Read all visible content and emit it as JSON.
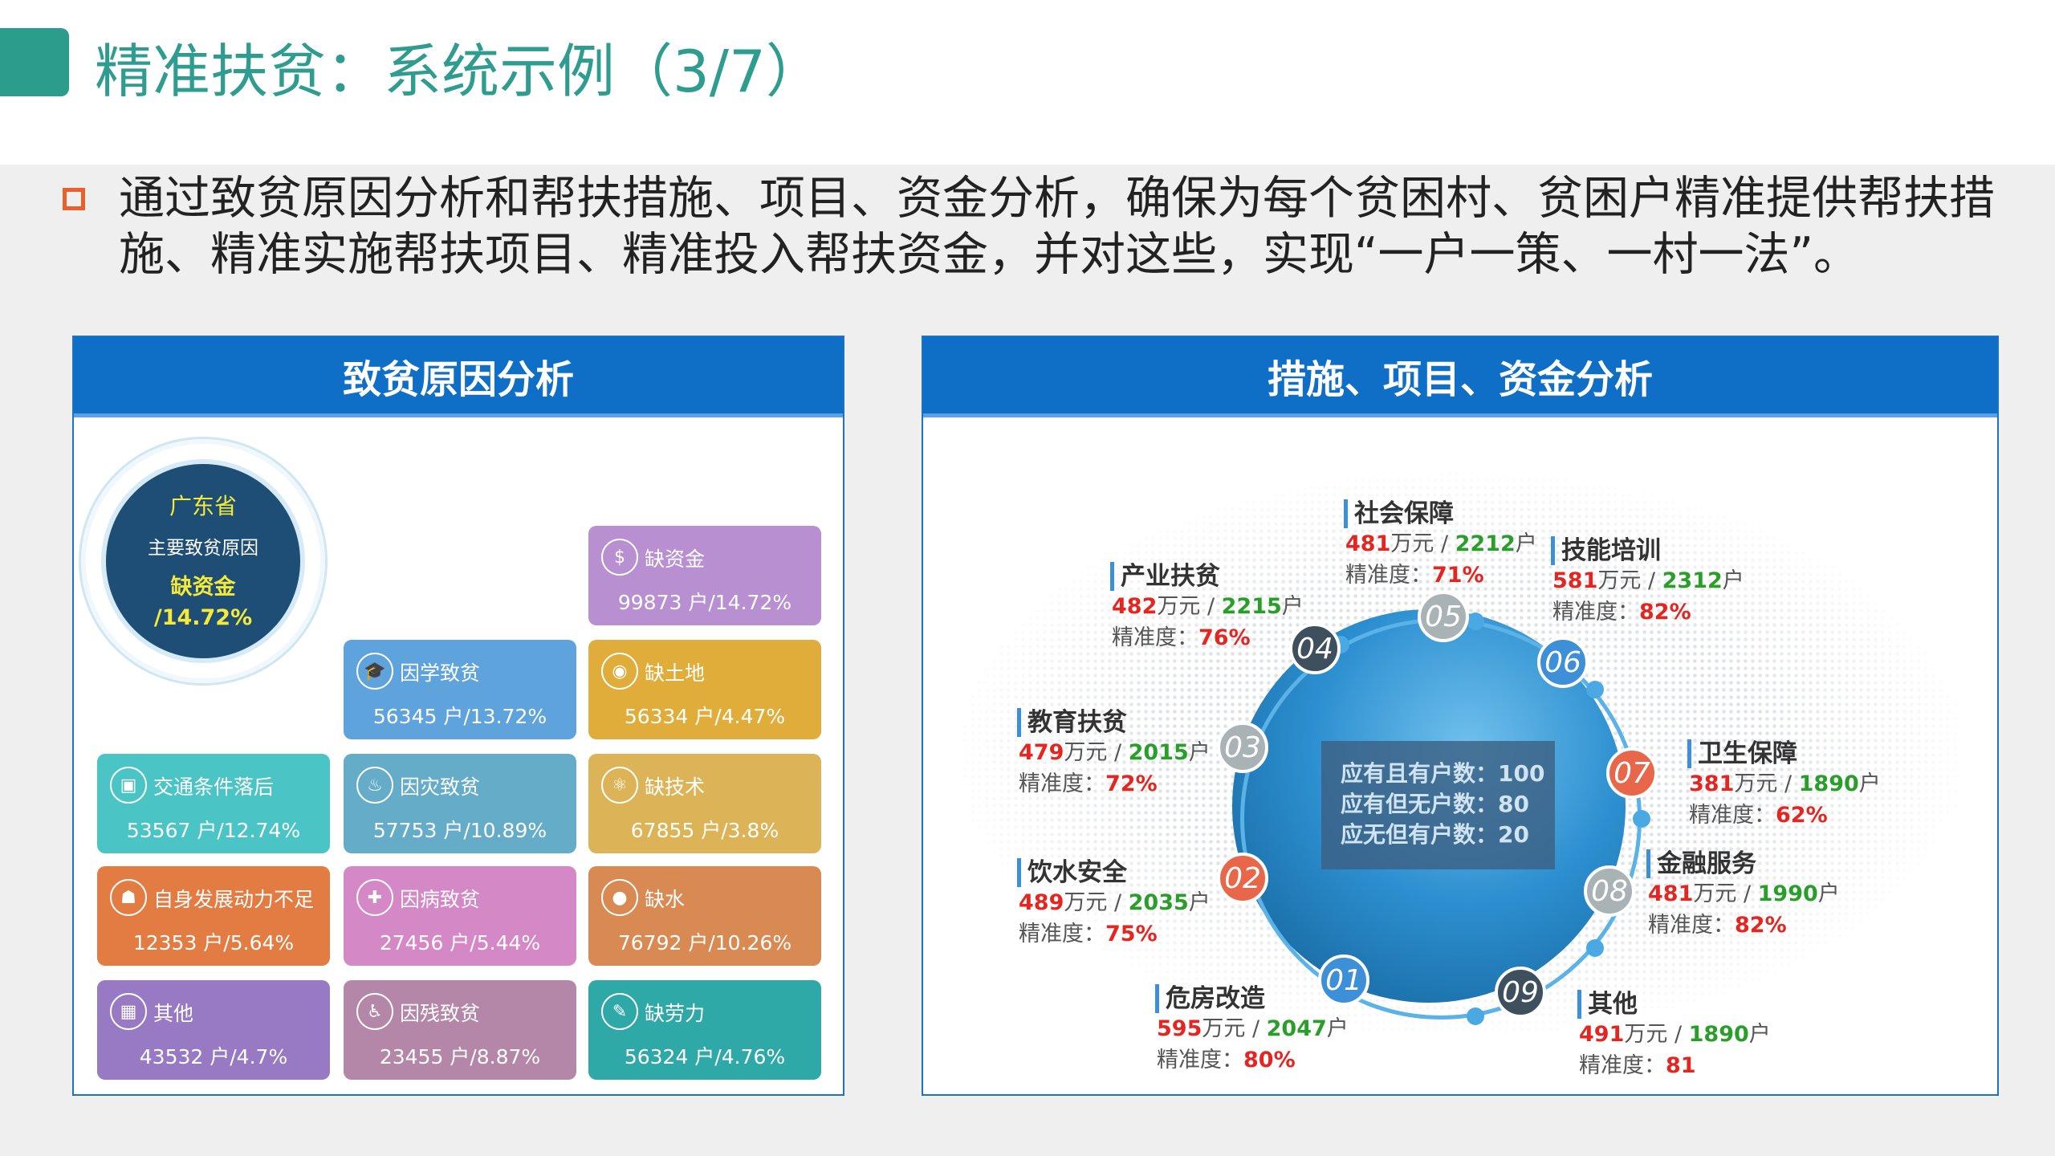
{
  "header": {
    "title": "精准扶贫：系统示例（3/7）",
    "accent": "#2c9c8c"
  },
  "intro": "通过致贫原因分析和帮扶措施、项目、资金分析，确保为每个贫困村、贫困户精准提供帮扶措施、精准实施帮扶项目、精准投入帮扶资金，并对这些，实现“一户一策、一村一法”。",
  "left_panel": {
    "title": "致贫原因分析",
    "summary": {
      "region": "广东省",
      "caption": "主要致贫原因",
      "cause": "缺资金",
      "percent": "/14.72%"
    },
    "tiles": [
      {
        "label": "缺资金",
        "value": "99873  户/14.72%",
        "icon": "coins-icon",
        "color": "#b88fd0"
      },
      {
        "label": "因学致贫",
        "value": "56345  户/13.72%",
        "icon": "graduation-cap-icon",
        "color": "#5fa3dc"
      },
      {
        "label": "缺土地",
        "value": "56334  户/4.47%",
        "icon": "globe-icon",
        "color": "#e0ac3a"
      },
      {
        "label": "交通条件落后",
        "value": "53567  户/12.74%",
        "icon": "train-icon",
        "color": "#4bc4c6"
      },
      {
        "label": "因灾致贫",
        "value": "57753  户/10.89%",
        "icon": "fire-icon",
        "color": "#65acc9"
      },
      {
        "label": "缺技术",
        "value": "67855  户/3.8%",
        "icon": "atom-icon",
        "color": "#dcb457"
      },
      {
        "label": "自身发展动力不足",
        "value": "12353  户/5.64%",
        "icon": "elderly-person-icon",
        "color": "#e27c42"
      },
      {
        "label": "因病致贫",
        "value": "27456  户/5.44%",
        "icon": "medicine-icon",
        "color": "#d588c6"
      },
      {
        "label": "缺水",
        "value": "76792  户/10.26%",
        "icon": "water-drop-icon",
        "color": "#d98952"
      },
      {
        "label": "其他",
        "value": "43532  户/4.7%",
        "icon": "grid-icon",
        "color": "#9879c3"
      },
      {
        "label": "因残致贫",
        "value": "23455  户/8.87%",
        "icon": "wheelchair-icon",
        "color": "#b486a8"
      },
      {
        "label": "缺劳力",
        "value": "56324  户/4.76%",
        "icon": "tool-icon",
        "color": "#2fa8a8"
      }
    ]
  },
  "right_panel": {
    "title": "措施、项目、资金分析",
    "info": [
      "应有且有户数：100",
      "应有但无户数：80",
      "应无但有户数：20"
    ],
    "numbers": [
      {
        "n": "01",
        "color": "#3d8fd8"
      },
      {
        "n": "02",
        "color": "#e8674a"
      },
      {
        "n": "03",
        "color": "#a9b3b6"
      },
      {
        "n": "04",
        "color": "#3e4f5e"
      },
      {
        "n": "05",
        "color": "#a9b3b6"
      },
      {
        "n": "06",
        "color": "#3d8fd8"
      },
      {
        "n": "07",
        "color": "#e8674a"
      },
      {
        "n": "08",
        "color": "#a9b3b6"
      },
      {
        "n": "09",
        "color": "#3e4f5e"
      }
    ],
    "measures": [
      {
        "name": "社会保障",
        "funds": "481",
        "unit1": "万元 / ",
        "households": "2212",
        "unit2": "户",
        "acc_label": "精准度：",
        "accuracy": "71%"
      },
      {
        "name": "技能培训",
        "funds": "581",
        "unit1": "万元 / ",
        "households": "2312",
        "unit2": "户",
        "acc_label": "精准度：",
        "accuracy": "82%"
      },
      {
        "name": "产业扶贫",
        "funds": "482",
        "unit1": "万元 / ",
        "households": "2215",
        "unit2": "户",
        "acc_label": "精准度：",
        "accuracy": "76%"
      },
      {
        "name": "教育扶贫",
        "funds": "479",
        "unit1": "万元 / ",
        "households": "2015",
        "unit2": "户",
        "acc_label": "精准度：",
        "accuracy": "72%"
      },
      {
        "name": "卫生保障",
        "funds": "381",
        "unit1": "万元 / ",
        "households": "1890",
        "unit2": "户",
        "acc_label": "精准度：",
        "accuracy": "62%"
      },
      {
        "name": "饮水安全",
        "funds": "489",
        "unit1": "万元 / ",
        "households": "2035",
        "unit2": "户",
        "acc_label": "精准度：",
        "accuracy": "75%"
      },
      {
        "name": "金融服务",
        "funds": "481",
        "unit1": "万元 / ",
        "households": "1990",
        "unit2": "户",
        "acc_label": "精准度：",
        "accuracy": "82%"
      },
      {
        "name": "危房改造",
        "funds": "595",
        "unit1": "万元 / ",
        "households": "2047",
        "unit2": "户",
        "acc_label": "精准度：",
        "accuracy": "80%"
      },
      {
        "name": "其他",
        "funds": "491",
        "unit1": "万元 / ",
        "households": "1890",
        "unit2": "户",
        "acc_label": "精准度：",
        "accuracy": "81"
      }
    ]
  }
}
